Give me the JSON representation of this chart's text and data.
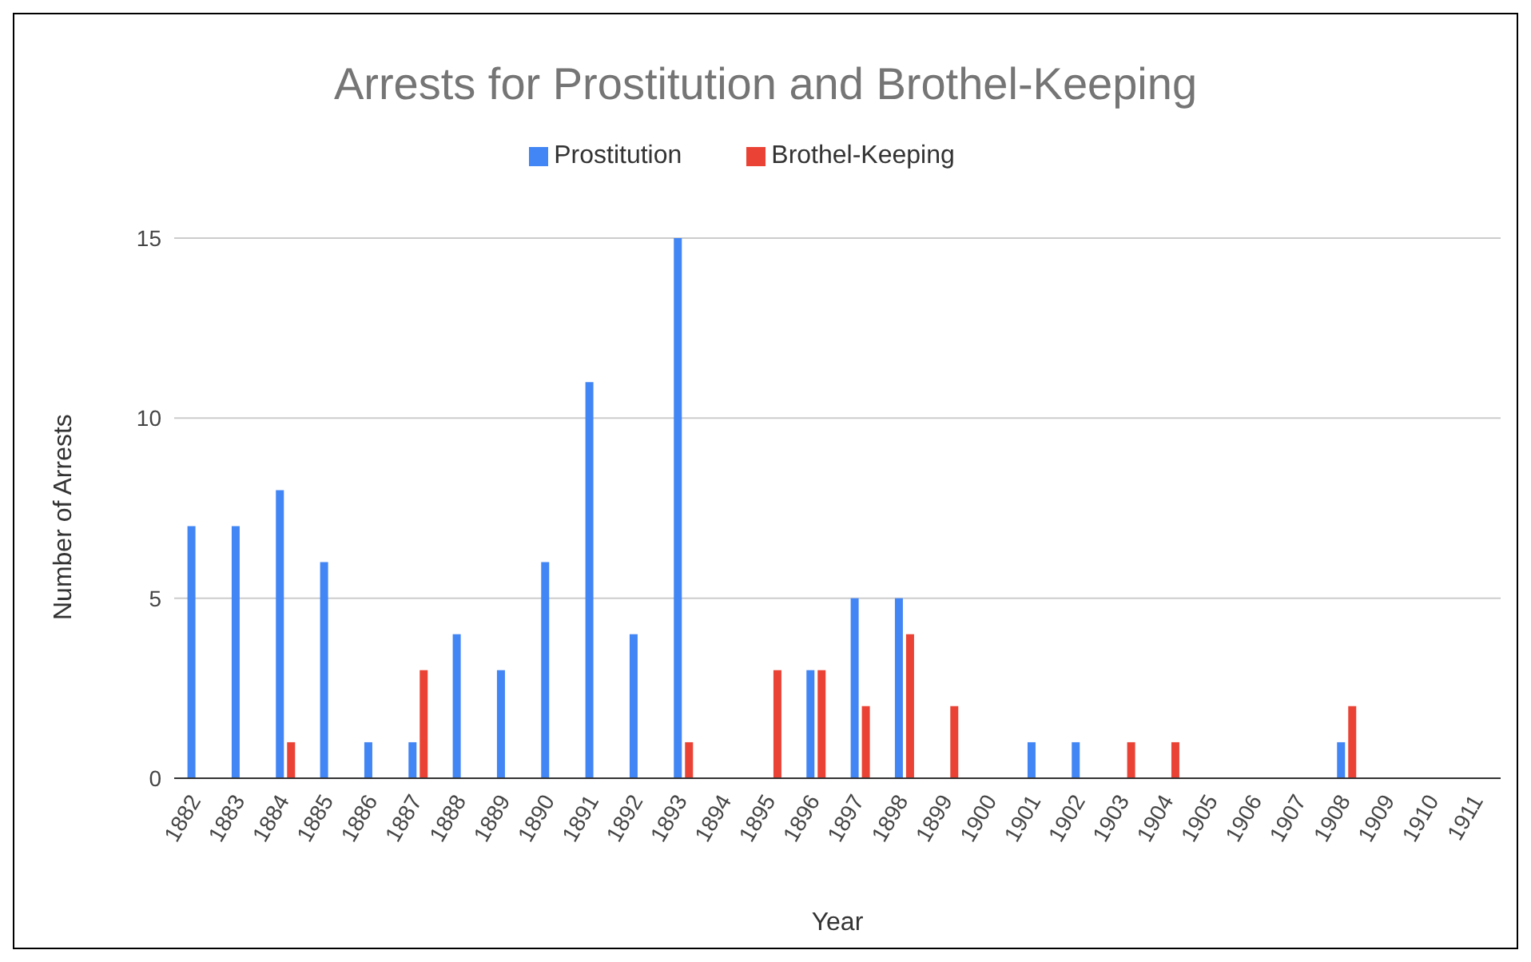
{
  "chart_data": {
    "type": "bar",
    "title": "Arrests for Prostitution and Brothel-Keeping",
    "xlabel": "Year",
    "ylabel": "Number of Arrests",
    "categories": [
      "1882",
      "1883",
      "1884",
      "1885",
      "1886",
      "1887",
      "1888",
      "1889",
      "1890",
      "1891",
      "1892",
      "1893",
      "1894",
      "1895",
      "1896",
      "1897",
      "1898",
      "1899",
      "1900",
      "1901",
      "1902",
      "1903",
      "1904",
      "1905",
      "1906",
      "1907",
      "1908",
      "1909",
      "1910",
      "1911"
    ],
    "series": [
      {
        "name": "Prostitution",
        "color": "#4285f4",
        "values": [
          7,
          7,
          8,
          6,
          1,
          1,
          4,
          3,
          6,
          11,
          4,
          15,
          0,
          0,
          3,
          5,
          5,
          0,
          0,
          1,
          1,
          0,
          0,
          0,
          0,
          0,
          1,
          0,
          0,
          0
        ]
      },
      {
        "name": "Brothel-Keeping",
        "color": "#ea4335",
        "values": [
          0,
          0,
          1,
          0,
          0,
          3,
          0,
          0,
          0,
          0,
          0,
          1,
          0,
          3,
          3,
          2,
          4,
          2,
          0,
          0,
          0,
          1,
          1,
          0,
          0,
          0,
          2,
          0,
          0,
          0
        ]
      }
    ],
    "ylim": [
      0,
      15
    ],
    "yticks": [
      0,
      5,
      10,
      15
    ],
    "grid": "y",
    "legend": "top"
  }
}
